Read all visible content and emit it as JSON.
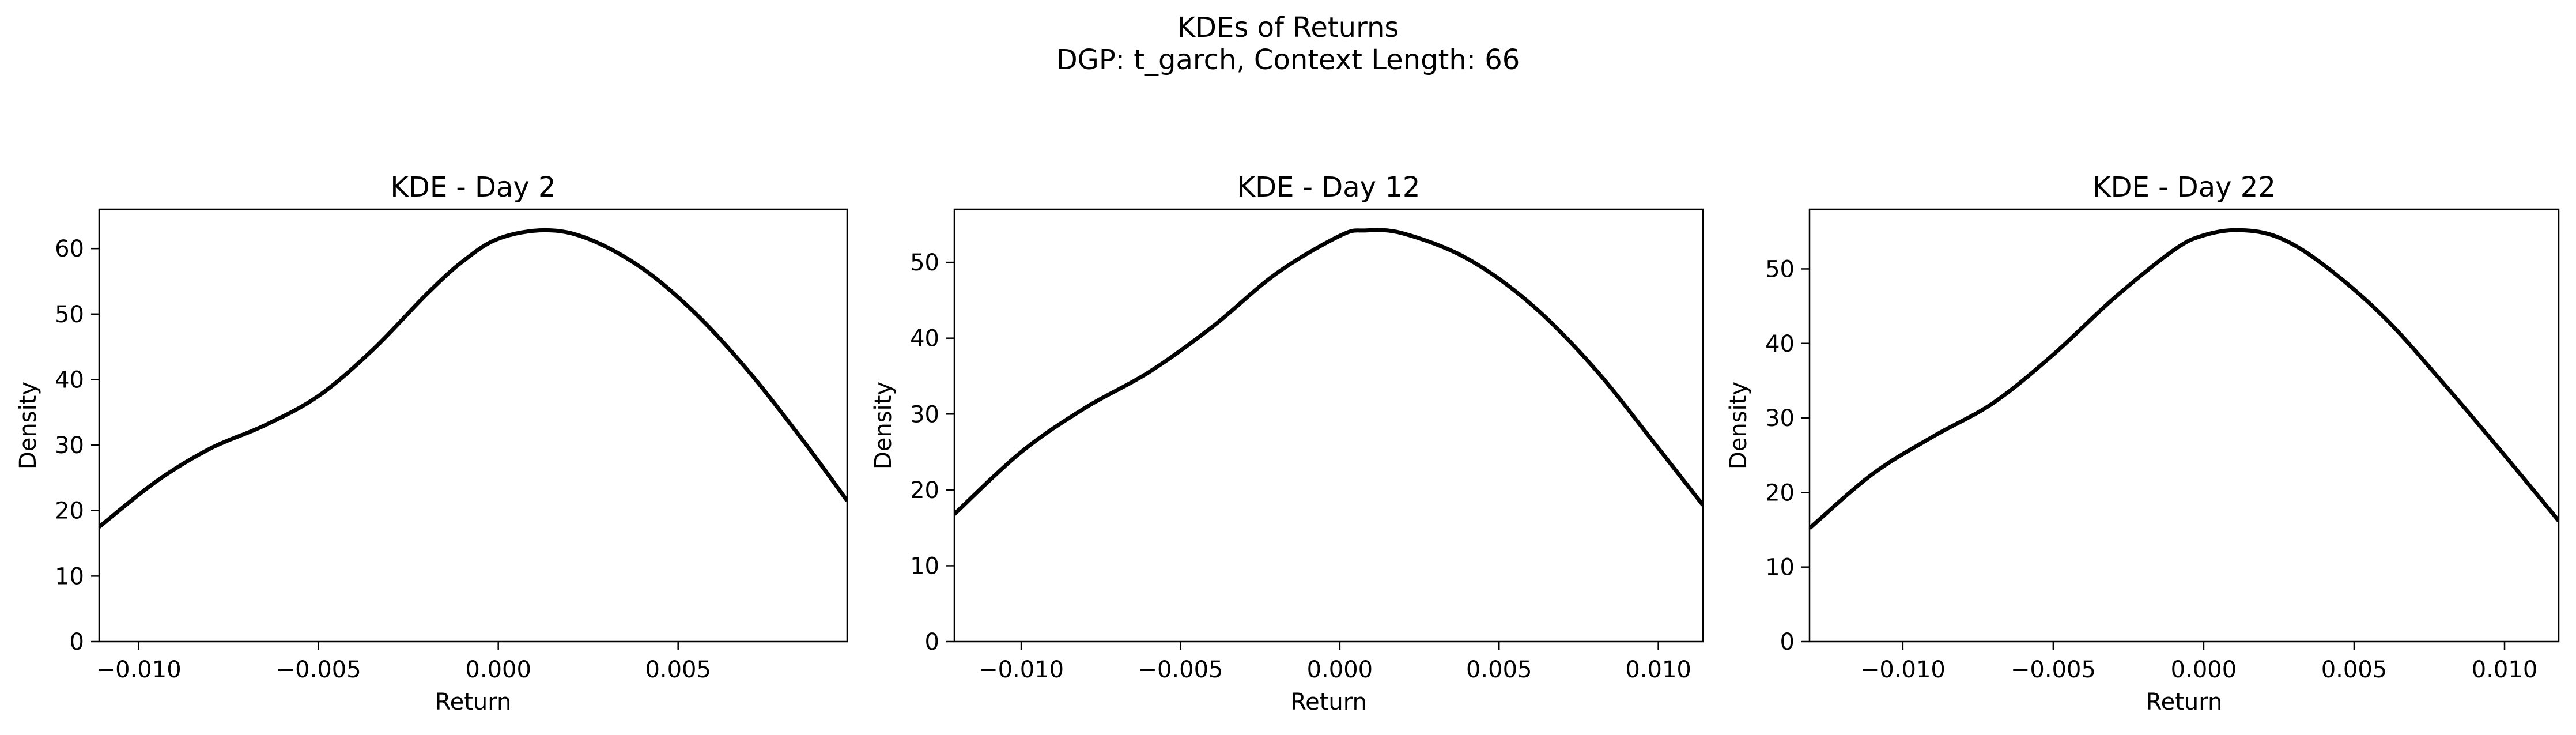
{
  "figure": {
    "title_line1": "KDEs of Returns",
    "title_line2": "DGP: t_garch, Context Length: 66"
  },
  "chart_data": [
    {
      "type": "line",
      "title": "KDE - Day 2",
      "xlabel": "Return",
      "ylabel": "Density",
      "xlim": [
        -0.0111,
        0.0097
      ],
      "ylim": [
        0,
        66
      ],
      "xticks": [
        -0.01,
        -0.005,
        0.0,
        0.005
      ],
      "xtick_labels": [
        "−0.010",
        "−0.005",
        "0.000",
        "0.005"
      ],
      "yticks": [
        0,
        10,
        20,
        30,
        40,
        50,
        60
      ],
      "ytick_labels": [
        "0",
        "10",
        "20",
        "30",
        "40",
        "50",
        "60"
      ],
      "grid": false,
      "line_color": "#000000",
      "series": [
        {
          "x": [
            -0.0111,
            -0.0095,
            -0.008,
            -0.0065,
            -0.005,
            -0.0035,
            -0.002,
            -0.001,
            0.0,
            0.0013,
            0.0025,
            0.004,
            0.0055,
            0.007,
            0.0085,
            0.0097
          ],
          "values": [
            17.5,
            24.5,
            29.5,
            33.0,
            37.5,
            44.5,
            53.0,
            58.0,
            61.5,
            62.8,
            61.5,
            57.0,
            50.0,
            41.0,
            30.5,
            21.5
          ]
        }
      ]
    },
    {
      "type": "line",
      "title": "KDE - Day 12",
      "xlabel": "Return",
      "ylabel": "Density",
      "xlim": [
        -0.0121,
        0.0114
      ],
      "ylim": [
        0,
        57
      ],
      "xticks": [
        -0.01,
        -0.005,
        0.0,
        0.005,
        0.01
      ],
      "xtick_labels": [
        "−0.010",
        "−0.005",
        "0.000",
        "0.005",
        "0.010"
      ],
      "yticks": [
        0,
        10,
        20,
        30,
        40,
        50
      ],
      "ytick_labels": [
        "0",
        "10",
        "20",
        "30",
        "40",
        "50"
      ],
      "grid": false,
      "line_color": "#000000",
      "series": [
        {
          "x": [
            -0.0121,
            -0.01,
            -0.008,
            -0.006,
            -0.004,
            -0.002,
            0.0,
            0.0008,
            0.002,
            0.004,
            0.006,
            0.008,
            0.01,
            0.0114
          ],
          "values": [
            16.8,
            25.0,
            30.8,
            35.5,
            41.5,
            48.5,
            53.5,
            54.2,
            53.8,
            50.5,
            44.5,
            36.0,
            25.5,
            18.0
          ]
        }
      ]
    },
    {
      "type": "line",
      "title": "KDE - Day 22",
      "xlabel": "Return",
      "ylabel": "Density",
      "xlim": [
        -0.0131,
        0.0118
      ],
      "ylim": [
        0,
        58
      ],
      "xticks": [
        -0.01,
        -0.005,
        0.0,
        0.005,
        0.01
      ],
      "xtick_labels": [
        "−0.010",
        "−0.005",
        "0.000",
        "0.005",
        "0.010"
      ],
      "yticks": [
        0,
        10,
        20,
        30,
        40,
        50
      ],
      "ytick_labels": [
        "0",
        "10",
        "20",
        "30",
        "40",
        "50"
      ],
      "grid": false,
      "line_color": "#000000",
      "series": [
        {
          "x": [
            -0.0131,
            -0.011,
            -0.009,
            -0.007,
            -0.005,
            -0.003,
            -0.001,
            0.0,
            0.0012,
            0.0025,
            0.004,
            0.006,
            0.008,
            0.01,
            0.0118
          ],
          "values": [
            15.2,
            22.5,
            27.5,
            32.0,
            38.5,
            46.0,
            52.5,
            54.5,
            55.2,
            54.2,
            50.5,
            43.5,
            34.5,
            25.0,
            16.2
          ]
        }
      ]
    }
  ]
}
